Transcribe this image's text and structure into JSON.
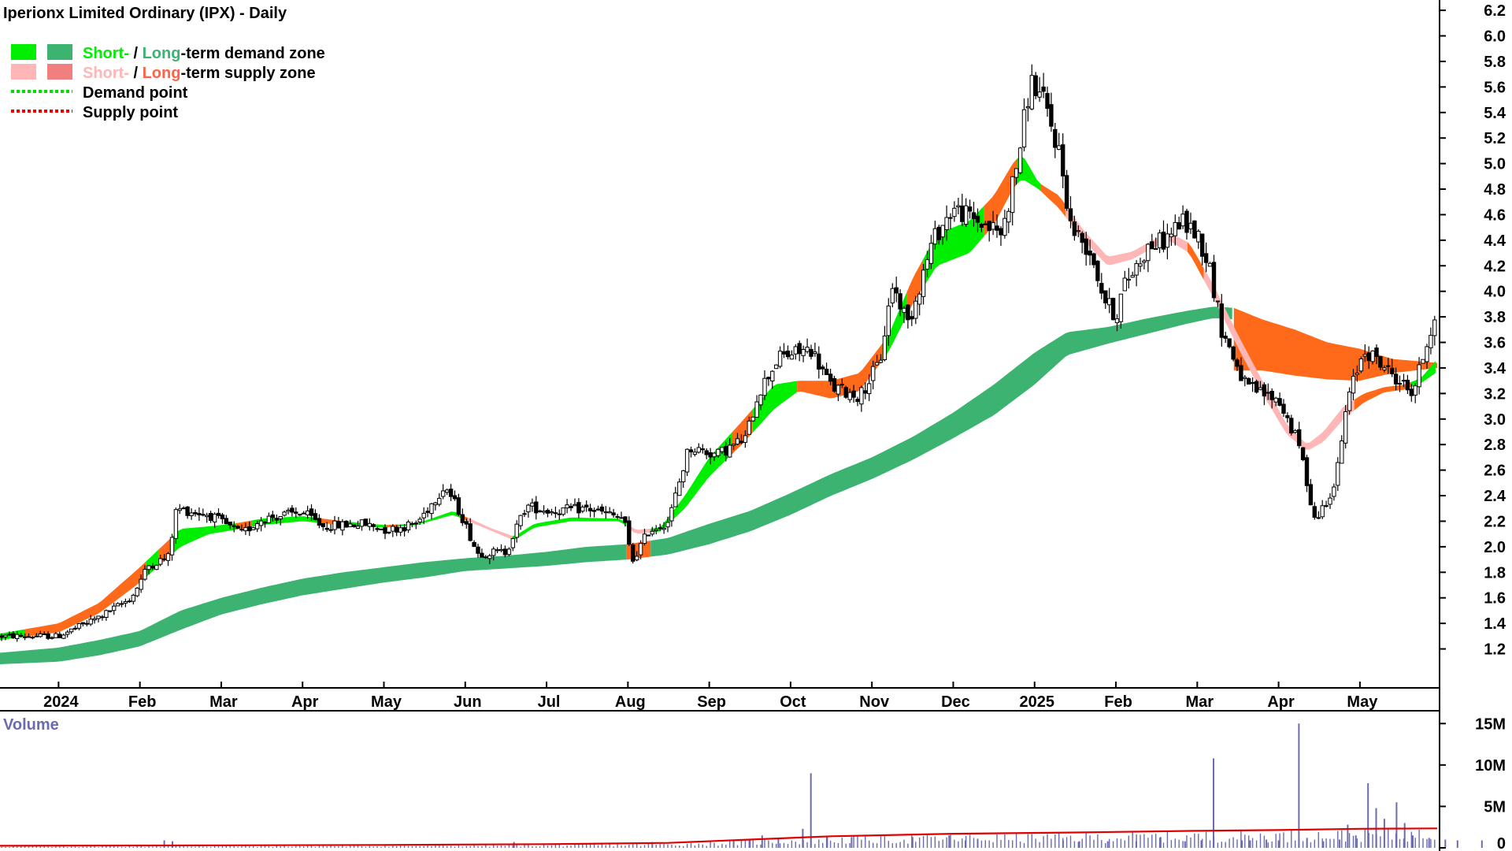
{
  "chart_data": [
    {
      "type": "candlestick",
      "title": "Iperionx Limited Ordinary (IPX) - Daily",
      "legend": [
        {
          "parts": [
            {
              "text": "Short-",
              "color": "#00ee00"
            },
            {
              "text": " / ",
              "color": "#000000"
            },
            {
              "text": "Long",
              "color": "#3cb371"
            },
            {
              "text": "-term demand zone",
              "color": "#000000"
            }
          ],
          "swatches": [
            "#00ee00",
            "#3cb371"
          ]
        },
        {
          "parts": [
            {
              "text": "Short-",
              "color": "#ffb6b6"
            },
            {
              "text": " / ",
              "color": "#000000"
            },
            {
              "text": "Long",
              "color": "#ff6347"
            },
            {
              "text": "-term supply zone",
              "color": "#000000"
            }
          ],
          "swatches": [
            "#ffb6b6",
            "#f08080"
          ]
        },
        {
          "parts": [
            {
              "text": "Demand point",
              "color": "#000000"
            }
          ],
          "dotted": "#00dd00"
        },
        {
          "parts": [
            {
              "text": "Supply point",
              "color": "#000000"
            }
          ],
          "dotted": "#ee0000"
        }
      ],
      "x_ticks": [
        "2024",
        "Feb",
        "Mar",
        "Apr",
        "May",
        "Jun",
        "Jul",
        "Aug",
        "Sep",
        "Oct",
        "Nov",
        "Dec",
        "2025",
        "Feb",
        "Mar",
        "Apr",
        "May"
      ],
      "x_tick_months": [
        0,
        1,
        2,
        3,
        4,
        5,
        6,
        7,
        8,
        9,
        10,
        11,
        12,
        13,
        14,
        15,
        16
      ],
      "y_ticks": [
        "1.2",
        "1.4",
        "1.6",
        "1.8",
        "2.0",
        "2.2",
        "2.4",
        "2.6",
        "2.8",
        "3.0",
        "3.2",
        "3.4",
        "3.6",
        "3.8",
        "4.0",
        "4.2",
        "4.4",
        "4.6",
        "4.8",
        "5.0",
        "5.2",
        "5.4",
        "5.6",
        "5.8",
        "6.0",
        "6.2"
      ],
      "ylim": [
        1.08,
        6.25
      ],
      "xlim_months": [
        -0.72,
        16.95
      ],
      "price_path": [
        [
          -0.72,
          1.3
        ],
        [
          0,
          1.3
        ],
        [
          0.5,
          1.45
        ],
        [
          0.9,
          1.6
        ],
        [
          1.1,
          1.85
        ],
        [
          1.35,
          1.92
        ],
        [
          1.45,
          2.3
        ],
        [
          1.6,
          2.28
        ],
        [
          1.85,
          2.25
        ],
        [
          2.25,
          2.1
        ],
        [
          2.5,
          2.22
        ],
        [
          3.0,
          2.27
        ],
        [
          3.25,
          2.16
        ],
        [
          3.75,
          2.18
        ],
        [
          4.05,
          2.13
        ],
        [
          4.4,
          2.18
        ],
        [
          4.75,
          2.48
        ],
        [
          4.95,
          2.25
        ],
        [
          5.15,
          1.95
        ],
        [
          5.5,
          1.96
        ],
        [
          5.75,
          2.32
        ],
        [
          6.05,
          2.28
        ],
        [
          6.5,
          2.3
        ],
        [
          6.95,
          2.22
        ],
        [
          7.05,
          1.88
        ],
        [
          7.25,
          2.12
        ],
        [
          7.5,
          2.2
        ],
        [
          7.75,
          2.78
        ],
        [
          8.1,
          2.72
        ],
        [
          8.45,
          2.85
        ],
        [
          8.6,
          3.2
        ],
        [
          8.85,
          3.48
        ],
        [
          9.25,
          3.55
        ],
        [
          9.5,
          3.25
        ],
        [
          9.85,
          3.18
        ],
        [
          10.1,
          3.45
        ],
        [
          10.25,
          4.05
        ],
        [
          10.45,
          3.75
        ],
        [
          10.75,
          4.4
        ],
        [
          11.0,
          4.65
        ],
        [
          11.45,
          4.5
        ],
        [
          11.6,
          4.45
        ],
        [
          11.8,
          5.05
        ],
        [
          11.95,
          5.65
        ],
        [
          12.1,
          5.5
        ],
        [
          12.3,
          5.1
        ],
        [
          12.45,
          4.5
        ],
        [
          12.7,
          4.3
        ],
        [
          12.85,
          3.95
        ],
        [
          13.0,
          3.8
        ],
        [
          13.1,
          4.05
        ],
        [
          13.4,
          4.35
        ],
        [
          13.6,
          4.4
        ],
        [
          13.8,
          4.55
        ],
        [
          14.0,
          4.45
        ],
        [
          14.15,
          4.2
        ],
        [
          14.3,
          3.7
        ],
        [
          14.6,
          3.25
        ],
        [
          15.0,
          3.15
        ],
        [
          15.25,
          2.8
        ],
        [
          15.45,
          2.2
        ],
        [
          15.7,
          2.5
        ],
        [
          15.85,
          3.15
        ],
        [
          16.05,
          3.55
        ],
        [
          16.4,
          3.35
        ],
        [
          16.65,
          3.2
        ],
        [
          16.95,
          3.88
        ]
      ],
      "short_zone": [
        [
          -0.72,
          1.27,
          1.32
        ],
        [
          0,
          1.33,
          1.4
        ],
        [
          0.5,
          1.48,
          1.56
        ],
        [
          1.0,
          1.72,
          1.84
        ],
        [
          1.5,
          2.0,
          2.14
        ],
        [
          1.85,
          2.1,
          2.16
        ],
        [
          2.15,
          2.13,
          2.18
        ],
        [
          2.5,
          2.17,
          2.22
        ],
        [
          3.0,
          2.2,
          2.24
        ],
        [
          3.5,
          2.17,
          2.2
        ],
        [
          4.0,
          2.15,
          2.17
        ],
        [
          4.4,
          2.17,
          2.18
        ],
        [
          4.85,
          2.25,
          2.28
        ],
        [
          5.3,
          2.13,
          2.15
        ],
        [
          5.6,
          2.05,
          2.08
        ],
        [
          5.85,
          2.15,
          2.18
        ],
        [
          6.3,
          2.2,
          2.23
        ],
        [
          6.9,
          2.2,
          2.22
        ],
        [
          7.1,
          2.1,
          2.13
        ],
        [
          7.4,
          2.12,
          2.15
        ],
        [
          7.7,
          2.3,
          2.4
        ],
        [
          8.0,
          2.55,
          2.7
        ],
        [
          8.4,
          2.8,
          2.98
        ],
        [
          8.8,
          3.08,
          3.27
        ],
        [
          9.1,
          3.22,
          3.3
        ],
        [
          9.5,
          3.16,
          3.3
        ],
        [
          9.85,
          3.22,
          3.36
        ],
        [
          10.2,
          3.52,
          3.65
        ],
        [
          10.5,
          3.9,
          4.1
        ],
        [
          10.8,
          4.2,
          4.45
        ],
        [
          11.2,
          4.3,
          4.55
        ],
        [
          11.5,
          4.52,
          4.75
        ],
        [
          11.75,
          4.82,
          5.02
        ],
        [
          11.85,
          4.88,
          5.07
        ],
        [
          12.05,
          4.8,
          4.85
        ],
        [
          12.3,
          4.65,
          4.75
        ],
        [
          12.6,
          4.4,
          4.48
        ],
        [
          12.9,
          4.2,
          4.27
        ],
        [
          13.2,
          4.25,
          4.31
        ],
        [
          13.45,
          4.34,
          4.4
        ],
        [
          13.65,
          4.4,
          4.46
        ],
        [
          13.9,
          4.3,
          4.38
        ],
        [
          14.2,
          3.95,
          4.05
        ],
        [
          14.5,
          3.56,
          3.66
        ],
        [
          14.8,
          3.2,
          3.3
        ],
        [
          15.1,
          2.88,
          2.96
        ],
        [
          15.35,
          2.75,
          2.8
        ],
        [
          15.55,
          2.82,
          2.9
        ],
        [
          15.8,
          3.0,
          3.1
        ],
        [
          16.05,
          3.13,
          3.2
        ],
        [
          16.3,
          3.21,
          3.25
        ],
        [
          16.55,
          3.23,
          3.27
        ],
        [
          16.75,
          3.28,
          3.32
        ],
        [
          16.95,
          3.37,
          3.47
        ]
      ],
      "long_zone": [
        [
          -0.72,
          1.08,
          1.17
        ],
        [
          0,
          1.1,
          1.21
        ],
        [
          0.5,
          1.15,
          1.27
        ],
        [
          1.0,
          1.22,
          1.34
        ],
        [
          1.5,
          1.35,
          1.5
        ],
        [
          2.0,
          1.47,
          1.6
        ],
        [
          2.5,
          1.55,
          1.68
        ],
        [
          3.0,
          1.62,
          1.75
        ],
        [
          3.5,
          1.67,
          1.8
        ],
        [
          4.0,
          1.72,
          1.84
        ],
        [
          4.5,
          1.76,
          1.88
        ],
        [
          5.0,
          1.81,
          1.91
        ],
        [
          5.5,
          1.83,
          1.93
        ],
        [
          6.0,
          1.85,
          1.96
        ],
        [
          6.5,
          1.88,
          2.0
        ],
        [
          7.0,
          1.9,
          2.02
        ],
        [
          7.5,
          1.94,
          2.07
        ],
        [
          8.0,
          2.02,
          2.18
        ],
        [
          8.5,
          2.12,
          2.28
        ],
        [
          9.0,
          2.25,
          2.42
        ],
        [
          9.5,
          2.4,
          2.57
        ],
        [
          10.0,
          2.53,
          2.7
        ],
        [
          10.5,
          2.68,
          2.86
        ],
        [
          11.0,
          2.85,
          3.05
        ],
        [
          11.5,
          3.03,
          3.27
        ],
        [
          12.0,
          3.27,
          3.52
        ],
        [
          12.4,
          3.5,
          3.68
        ],
        [
          12.9,
          3.59,
          3.72
        ],
        [
          13.4,
          3.67,
          3.79
        ],
        [
          13.9,
          3.75,
          3.85
        ],
        [
          14.2,
          3.79,
          3.88
        ],
        [
          14.45,
          3.78,
          3.87
        ]
      ],
      "long_supply": [
        [
          14.45,
          3.38,
          3.87
        ],
        [
          14.8,
          3.38,
          3.78
        ],
        [
          15.2,
          3.34,
          3.7
        ],
        [
          15.6,
          3.31,
          3.6
        ],
        [
          16.0,
          3.3,
          3.55
        ],
        [
          16.4,
          3.36,
          3.47
        ],
        [
          16.95,
          3.4,
          3.44
        ]
      ],
      "volume": {
        "label": "Volume",
        "y_ticks": [
          "0",
          "5M",
          "10M",
          "15M"
        ],
        "ylim": [
          0,
          15.5
        ],
        "bars": [
          [
            1.3,
            0.9
          ],
          [
            1.4,
            0.8
          ],
          [
            5.6,
            0.7
          ],
          [
            7.3,
            0.7
          ],
          [
            8.3,
            0.9
          ],
          [
            8.5,
            1.0
          ],
          [
            8.65,
            1.5
          ],
          [
            8.85,
            1.2
          ],
          [
            9.15,
            2.3
          ],
          [
            9.25,
            9.0
          ],
          [
            9.45,
            1.3
          ],
          [
            9.75,
            1.3
          ],
          [
            10.5,
            1.3
          ],
          [
            10.95,
            1.5
          ],
          [
            11.15,
            0.9
          ],
          [
            11.3,
            1.1
          ],
          [
            12.35,
            0.9
          ],
          [
            12.55,
            0.8
          ],
          [
            12.9,
            0.8
          ],
          [
            13.25,
            0.8
          ],
          [
            13.55,
            1.3
          ],
          [
            13.85,
            0.8
          ],
          [
            14.05,
            0.9
          ],
          [
            14.2,
            10.8
          ],
          [
            14.55,
            0.9
          ],
          [
            14.65,
            0.9
          ],
          [
            14.85,
            1.0
          ],
          [
            15.0,
            0.9
          ],
          [
            15.25,
            15.0
          ],
          [
            15.35,
            1.2
          ],
          [
            15.55,
            0.8
          ],
          [
            15.75,
            1.0
          ],
          [
            15.85,
            2.8
          ],
          [
            15.95,
            1.5
          ],
          [
            16.1,
            7.8
          ],
          [
            16.2,
            4.8
          ],
          [
            16.3,
            3.5
          ],
          [
            16.45,
            5.5
          ],
          [
            16.55,
            3.0
          ],
          [
            16.65,
            1.5
          ],
          [
            16.85,
            1.2
          ],
          [
            17.05,
            1.0
          ],
          [
            17.2,
            0.9
          ],
          [
            17.5,
            0.9
          ]
        ],
        "ma": [
          [
            -0.72,
            0.25
          ],
          [
            2.0,
            0.3
          ],
          [
            4.0,
            0.35
          ],
          [
            6.0,
            0.45
          ],
          [
            7.5,
            0.6
          ],
          [
            8.5,
            1.0
          ],
          [
            9.5,
            1.4
          ],
          [
            11.0,
            1.7
          ],
          [
            12.5,
            1.85
          ],
          [
            14.0,
            2.05
          ],
          [
            15.0,
            2.15
          ],
          [
            16.0,
            2.3
          ],
          [
            16.95,
            2.35
          ]
        ]
      }
    }
  ]
}
